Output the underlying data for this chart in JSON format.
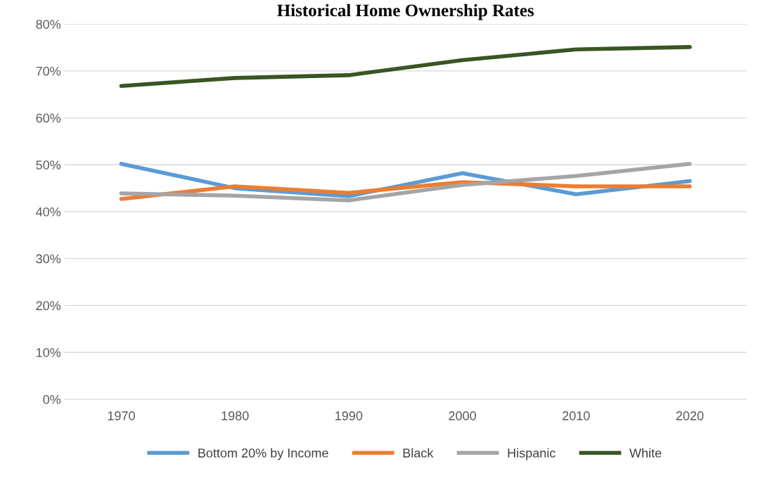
{
  "chart_data": {
    "type": "line",
    "title": "Historical Home Ownership Rates",
    "categories": [
      "1970",
      "1980",
      "1990",
      "2000",
      "2010",
      "2020"
    ],
    "series": [
      {
        "name": "Bottom 20% by Income",
        "color": "#5b9bd5",
        "values": [
          50.2,
          45.0,
          43.3,
          48.2,
          43.7,
          46.5
        ]
      },
      {
        "name": "Black",
        "color": "#ed7d31",
        "values": [
          42.7,
          45.4,
          44.0,
          46.3,
          45.4,
          45.4
        ]
      },
      {
        "name": "Hispanic",
        "color": "#a5a5a5",
        "values": [
          43.9,
          43.4,
          42.4,
          45.7,
          47.6,
          50.2
        ]
      },
      {
        "name": "White",
        "color": "#375623",
        "values": [
          66.8,
          68.5,
          69.1,
          72.3,
          74.6,
          75.1
        ]
      }
    ],
    "ylim": [
      0,
      80
    ],
    "yticks": [
      {
        "value": 0,
        "label": "0%"
      },
      {
        "value": 10,
        "label": "10%"
      },
      {
        "value": 20,
        "label": "20%"
      },
      {
        "value": 30,
        "label": "30%"
      },
      {
        "value": 40,
        "label": "40%"
      },
      {
        "value": 50,
        "label": "50%"
      },
      {
        "value": 60,
        "label": "60%"
      },
      {
        "value": 70,
        "label": "70%"
      },
      {
        "value": 80,
        "label": "80%"
      }
    ],
    "grid": "y",
    "legend": "bottom",
    "marker": "none",
    "line_style": "solid"
  }
}
